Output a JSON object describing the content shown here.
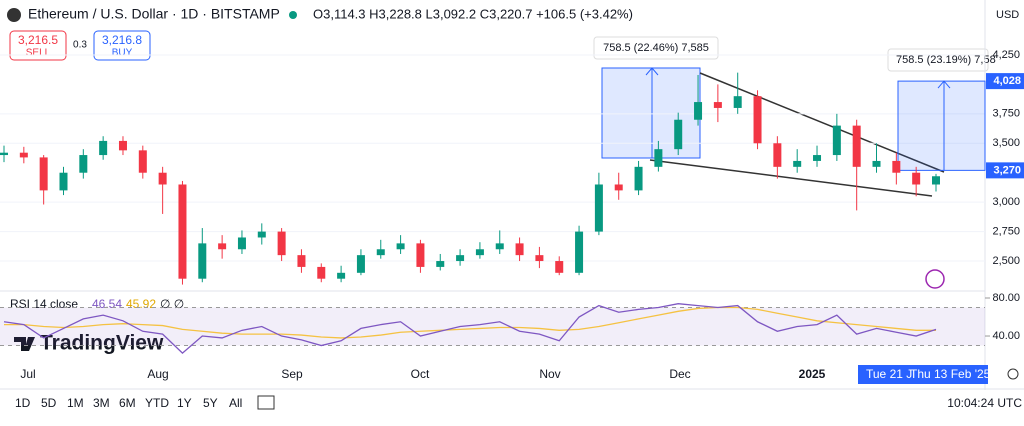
{
  "header": {
    "symbol": "Ethereum / U.S. Dollar · 1D · BITSTAMP",
    "ohlc": "O3,114.3 H3,228.8 L3,092.2 C3,220.7 +106.5 (+3.42%)",
    "sell_price": "3,216.5",
    "sell": "SELL",
    "spread": "0.3",
    "buy_price": "3,216.8",
    "buy": "BUY",
    "currency": "USD"
  },
  "chart_data": {
    "type": "candlestick",
    "open": [
      3400,
      3420,
      3380,
      3100,
      3250,
      3400,
      3520,
      3440,
      3250,
      3150,
      2350,
      2650,
      2600,
      2700,
      2750,
      2550,
      2450,
      2350,
      2400,
      2550,
      2600,
      2650,
      2450,
      2500,
      2550,
      2600,
      2650,
      2550,
      2500,
      2400,
      2750,
      3150,
      3100,
      3300,
      3450,
      3700,
      3850,
      3800,
      3900,
      3500,
      3300,
      3350,
      3400,
      3650,
      3300,
      3350,
      3250,
      3150
    ],
    "high": [
      3480,
      3470,
      3400,
      3300,
      3450,
      3560,
      3560,
      3480,
      3300,
      3180,
      2780,
      2720,
      2760,
      2820,
      2780,
      2600,
      2480,
      2460,
      2600,
      2680,
      2720,
      2680,
      2560,
      2600,
      2660,
      2760,
      2700,
      2620,
      2540,
      2800,
      3250,
      3250,
      3350,
      3520,
      3760,
      4080,
      4000,
      4100,
      3950,
      3560,
      3450,
      3480,
      3750,
      3700,
      3500,
      3420,
      3300,
      3240
    ],
    "low": [
      3340,
      3330,
      2980,
      3060,
      3200,
      3360,
      3400,
      3200,
      2900,
      2300,
      2320,
      2520,
      2560,
      2640,
      2500,
      2400,
      2320,
      2320,
      2380,
      2520,
      2560,
      2400,
      2420,
      2460,
      2520,
      2560,
      2500,
      2440,
      2380,
      2380,
      2720,
      3020,
      3060,
      3260,
      3400,
      3650,
      3680,
      3750,
      3450,
      3200,
      3250,
      3300,
      3350,
      2930,
      3250,
      3150,
      3050,
      3090
    ],
    "close": [
      3420,
      3380,
      3100,
      3250,
      3400,
      3520,
      3440,
      3250,
      3150,
      2350,
      2650,
      2600,
      2700,
      2750,
      2550,
      2450,
      2350,
      2400,
      2550,
      2600,
      2650,
      2450,
      2500,
      2550,
      2600,
      2650,
      2550,
      2500,
      2400,
      2750,
      3150,
      3100,
      3300,
      3450,
      3700,
      3850,
      3800,
      3900,
      3500,
      3300,
      3350,
      3400,
      3650,
      3300,
      3350,
      3250,
      3150,
      3220
    ],
    "up_color": "#089981",
    "down_color": "#f23645",
    "ylim": [
      2254,
      4462
    ],
    "yticks": [
      {
        "value": 4250,
        "label": "4,250"
      },
      {
        "value": 3750,
        "label": "3,750"
      },
      {
        "value": 3500,
        "label": "3,500"
      },
      {
        "value": 3000,
        "label": "3,000"
      },
      {
        "value": 2750,
        "label": "2,750"
      },
      {
        "value": 2500,
        "label": "2,500"
      }
    ],
    "price_labels": [
      {
        "value": 4028,
        "label": "4,028"
      },
      {
        "value": 3270,
        "label": "3,270"
      }
    ],
    "measure_labels": [
      "758.5 (22.46%) 7,585",
      "758.5 (23.19%) 7,58"
    ],
    "x_labels": [
      "Jul",
      "Aug",
      "Sep",
      "Oct",
      "Nov",
      "Dec",
      "2025"
    ],
    "date_labels": [
      "Tue 21 J",
      "Thu 13 Feb '25"
    ]
  },
  "rsi": {
    "title": "RSI 14 close",
    "value": "46.54",
    "ma_value": "45.92",
    "extra": "∅ ∅",
    "values": [
      55,
      52,
      38,
      48,
      58,
      62,
      56,
      45,
      42,
      22,
      40,
      38,
      46,
      50,
      40,
      36,
      30,
      35,
      48,
      52,
      55,
      40,
      45,
      50,
      52,
      55,
      45,
      42,
      35,
      60,
      72,
      65,
      68,
      70,
      74,
      72,
      70,
      72,
      55,
      45,
      50,
      52,
      62,
      42,
      48,
      44,
      40,
      47
    ],
    "ma": [
      52,
      52,
      50,
      49,
      50,
      52,
      53,
      52,
      51,
      47,
      45,
      43,
      42,
      42,
      42,
      41,
      39,
      38,
      39,
      41,
      44,
      45,
      46,
      47,
      48,
      49,
      49,
      48,
      46,
      47,
      50,
      54,
      58,
      62,
      66,
      69,
      70,
      70,
      68,
      64,
      60,
      56,
      54,
      52,
      50,
      48,
      46,
      46
    ],
    "color": "#7e57c2",
    "ma_color": "#f5c242",
    "band": [
      30,
      70
    ],
    "ylim": [
      23.2,
      86.3
    ],
    "yticks": [
      {
        "value": 80,
        "label": "80.00"
      },
      {
        "value": 40,
        "label": "40.00"
      }
    ]
  },
  "logo": "TradingView",
  "toolbar": {
    "ranges": [
      "1D",
      "5D",
      "1M",
      "3M",
      "6M",
      "YTD",
      "1Y",
      "5Y",
      "All"
    ],
    "clock": "10:04:24 UTC"
  }
}
